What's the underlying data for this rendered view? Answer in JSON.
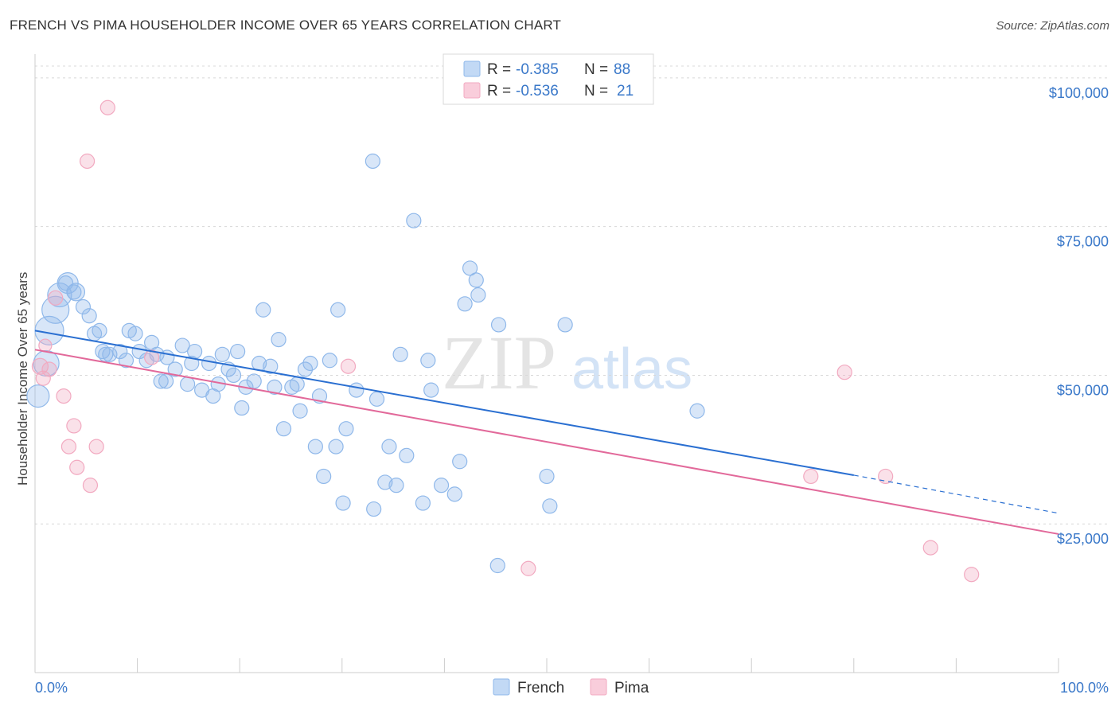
{
  "title": "FRENCH VS PIMA HOUSEHOLDER INCOME OVER 65 YEARS CORRELATION CHART",
  "source": "Source: ZipAtlas.com",
  "watermark": {
    "zip": "ZIP",
    "atlas": "atlas"
  },
  "colors": {
    "french": "#8fb8ea",
    "french_line": "#2a6fd1",
    "pima": "#f2a9c0",
    "pima_line": "#e2699a",
    "axis_label": "#3a78c9",
    "grid": "#d8d8d8"
  },
  "legend": {
    "rows": [
      {
        "series": "french",
        "r_label": "R =",
        "r_value": "-0.385",
        "n_label": "N =",
        "n_value": "88"
      },
      {
        "series": "pima",
        "r_label": "R =",
        "r_value": "-0.536",
        "n_label": "N =",
        "n_value": "21"
      }
    ]
  },
  "chart_data": {
    "type": "scatter",
    "title": "FRENCH VS PIMA HOUSEHOLDER INCOME OVER 65 YEARS CORRELATION CHART",
    "xlabel": "",
    "ylabel": "Householder Income Over 65 years",
    "xlim": [
      0,
      100
    ],
    "ylim": [
      0,
      104000
    ],
    "x_tick_labels": [
      "0.0%",
      "100.0%"
    ],
    "y_ticks": [
      25000,
      50000,
      75000,
      100000
    ],
    "y_tick_labels": [
      "$25,000",
      "$50,000",
      "$75,000",
      "$100,000"
    ],
    "grid": true,
    "legend_position": "top-center",
    "series": [
      {
        "name": "French",
        "r": -0.385,
        "n": 88,
        "trend": {
          "x0": 0,
          "y0": 57500,
          "x1": 80,
          "y1": 33200,
          "dash_to_x": 100,
          "dash_to_y": 26800
        },
        "points": [
          [
            0.3,
            46500,
            14
          ],
          [
            1.1,
            52000,
            16
          ],
          [
            1.4,
            57500,
            18
          ],
          [
            2.0,
            61000,
            17
          ],
          [
            2.4,
            63500,
            15
          ],
          [
            3.2,
            65500,
            13
          ],
          [
            4.0,
            64000,
            11
          ],
          [
            3.8,
            64000,
            9
          ],
          [
            4.7,
            61500,
            9
          ],
          [
            5.3,
            60000,
            9
          ],
          [
            5.8,
            57000,
            9
          ],
          [
            6.3,
            57500,
            9
          ],
          [
            6.6,
            54000,
            9
          ],
          [
            7.3,
            53500,
            9
          ],
          [
            8.3,
            54000,
            9
          ],
          [
            8.9,
            52500,
            9
          ],
          [
            9.2,
            57500,
            9
          ],
          [
            9.8,
            57000,
            9
          ],
          [
            10.2,
            54000,
            9
          ],
          [
            10.9,
            52500,
            9
          ],
          [
            11.4,
            55500,
            9
          ],
          [
            11.9,
            53500,
            9
          ],
          [
            12.3,
            49000,
            9
          ],
          [
            12.8,
            49000,
            9
          ],
          [
            13.7,
            51000,
            9
          ],
          [
            14.4,
            55000,
            9
          ],
          [
            14.9,
            48500,
            9
          ],
          [
            15.3,
            52000,
            9
          ],
          [
            15.6,
            54000,
            9
          ],
          [
            16.3,
            47500,
            9
          ],
          [
            17.0,
            52000,
            9
          ],
          [
            17.4,
            46500,
            9
          ],
          [
            17.9,
            48500,
            9
          ],
          [
            18.3,
            53500,
            9
          ],
          [
            18.9,
            51000,
            9
          ],
          [
            19.4,
            50000,
            9
          ],
          [
            19.8,
            54000,
            9
          ],
          [
            20.2,
            44500,
            9
          ],
          [
            20.6,
            48000,
            9
          ],
          [
            21.4,
            49000,
            9
          ],
          [
            22.3,
            61000,
            9
          ],
          [
            21.9,
            52000,
            9
          ],
          [
            23.0,
            51500,
            9
          ],
          [
            23.4,
            48000,
            9
          ],
          [
            23.8,
            56000,
            9
          ],
          [
            24.3,
            41000,
            9
          ],
          [
            25.1,
            48000,
            9
          ],
          [
            25.6,
            48500,
            9
          ],
          [
            25.9,
            44000,
            9
          ],
          [
            26.4,
            51000,
            9
          ],
          [
            26.9,
            52000,
            9
          ],
          [
            27.4,
            38000,
            9
          ],
          [
            27.8,
            46500,
            9
          ],
          [
            28.2,
            33000,
            9
          ],
          [
            28.8,
            52500,
            9
          ],
          [
            29.4,
            38000,
            9
          ],
          [
            29.6,
            61000,
            9
          ],
          [
            30.1,
            28500,
            9
          ],
          [
            30.4,
            41000,
            9
          ],
          [
            31.4,
            47500,
            9
          ],
          [
            33.1,
            27500,
            9
          ],
          [
            33.4,
            46000,
            9
          ],
          [
            33.0,
            86000,
            9
          ],
          [
            34.2,
            32000,
            9
          ],
          [
            34.6,
            38000,
            9
          ],
          [
            35.3,
            31500,
            9
          ],
          [
            35.7,
            53500,
            9
          ],
          [
            36.3,
            36500,
            9
          ],
          [
            37.0,
            76000,
            9
          ],
          [
            37.9,
            28500,
            9
          ],
          [
            38.4,
            52500,
            9
          ],
          [
            38.7,
            47500,
            9
          ],
          [
            39.7,
            31500,
            9
          ],
          [
            41.0,
            30000,
            9
          ],
          [
            41.5,
            35500,
            9
          ],
          [
            42.0,
            62000,
            9
          ],
          [
            42.5,
            68000,
            9
          ],
          [
            43.1,
            66000,
            9
          ],
          [
            43.3,
            63500,
            9
          ],
          [
            45.3,
            58500,
            9
          ],
          [
            45.2,
            18000,
            9
          ],
          [
            50.0,
            33000,
            9
          ],
          [
            50.3,
            28000,
            9
          ],
          [
            51.8,
            58500,
            9
          ],
          [
            64.7,
            44000,
            9
          ],
          [
            3.0,
            65500,
            9
          ],
          [
            6.9,
            53500,
            9
          ],
          [
            12.9,
            53000,
            9
          ]
        ]
      },
      {
        "name": "Pima",
        "r": -0.536,
        "n": 21,
        "trend": {
          "x0": 0,
          "y0": 54300,
          "x1": 100,
          "y1": 23300
        },
        "points": [
          [
            0.5,
            51500,
            10
          ],
          [
            0.8,
            49500,
            9
          ],
          [
            1.4,
            51000,
            9
          ],
          [
            2.0,
            63000,
            9
          ],
          [
            2.8,
            46500,
            9
          ],
          [
            3.3,
            38000,
            9
          ],
          [
            3.8,
            41500,
            9
          ],
          [
            4.1,
            34500,
            9
          ],
          [
            5.1,
            86000,
            9
          ],
          [
            5.4,
            31500,
            9
          ],
          [
            6.0,
            38000,
            9
          ],
          [
            7.1,
            95000,
            9
          ],
          [
            11.4,
            53000,
            9
          ],
          [
            30.6,
            51500,
            9
          ],
          [
            48.2,
            17500,
            9
          ],
          [
            75.8,
            33000,
            9
          ],
          [
            79.1,
            50500,
            9
          ],
          [
            83.1,
            33000,
            9
          ],
          [
            87.5,
            21000,
            9
          ],
          [
            91.5,
            16500,
            9
          ],
          [
            1.0,
            55000,
            8
          ]
        ]
      }
    ]
  },
  "bottom_legend": {
    "french_label": "French",
    "pima_label": "Pima"
  }
}
